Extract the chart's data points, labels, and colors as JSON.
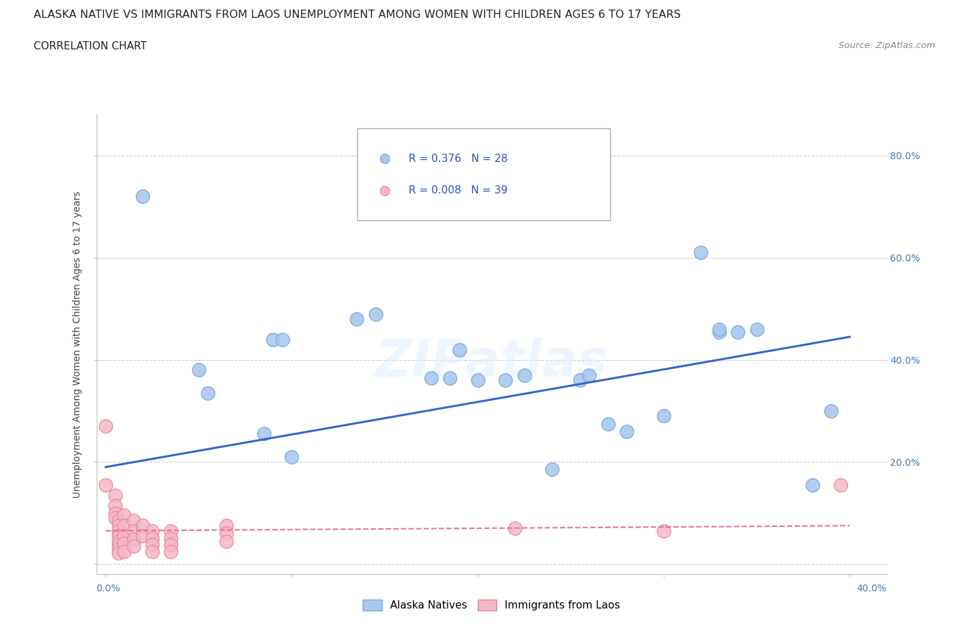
{
  "title": "ALASKA NATIVE VS IMMIGRANTS FROM LAOS UNEMPLOYMENT AMONG WOMEN WITH CHILDREN AGES 6 TO 17 YEARS",
  "subtitle": "CORRELATION CHART",
  "source": "Source: ZipAtlas.com",
  "ylabel": "Unemployment Among Women with Children Ages 6 to 17 years",
  "xlim": [
    0.0,
    0.42
  ],
  "ylim": [
    -0.02,
    0.88
  ],
  "alaska_R": 0.376,
  "alaska_N": 28,
  "laos_R": 0.008,
  "laos_N": 39,
  "watermark": "ZIPatlas",
  "alaska_color": "#aac8ee",
  "alaska_edge": "#7aaad8",
  "laos_color": "#f5b8c8",
  "laos_edge": "#e8849c",
  "alaska_line_color": "#3366cc",
  "laos_line_color": "#e87090",
  "background_color": "#ffffff",
  "alaska_points": [
    [
      0.02,
      0.72
    ],
    [
      0.05,
      0.38
    ],
    [
      0.055,
      0.335
    ],
    [
      0.09,
      0.44
    ],
    [
      0.095,
      0.44
    ],
    [
      0.085,
      0.255
    ],
    [
      0.1,
      0.21
    ],
    [
      0.135,
      0.48
    ],
    [
      0.145,
      0.49
    ],
    [
      0.175,
      0.365
    ],
    [
      0.185,
      0.365
    ],
    [
      0.19,
      0.42
    ],
    [
      0.2,
      0.36
    ],
    [
      0.215,
      0.36
    ],
    [
      0.225,
      0.37
    ],
    [
      0.24,
      0.185
    ],
    [
      0.255,
      0.36
    ],
    [
      0.26,
      0.37
    ],
    [
      0.27,
      0.275
    ],
    [
      0.28,
      0.26
    ],
    [
      0.3,
      0.29
    ],
    [
      0.32,
      0.61
    ],
    [
      0.33,
      0.455
    ],
    [
      0.34,
      0.455
    ],
    [
      0.35,
      0.46
    ],
    [
      0.33,
      0.46
    ],
    [
      0.38,
      0.155
    ],
    [
      0.39,
      0.3
    ]
  ],
  "laos_points": [
    [
      0.0,
      0.27
    ],
    [
      0.0,
      0.155
    ],
    [
      0.005,
      0.135
    ],
    [
      0.005,
      0.115
    ],
    [
      0.005,
      0.1
    ],
    [
      0.005,
      0.09
    ],
    [
      0.007,
      0.085
    ],
    [
      0.007,
      0.075
    ],
    [
      0.007,
      0.065
    ],
    [
      0.007,
      0.055
    ],
    [
      0.007,
      0.045
    ],
    [
      0.007,
      0.038
    ],
    [
      0.007,
      0.03
    ],
    [
      0.007,
      0.022
    ],
    [
      0.01,
      0.095
    ],
    [
      0.01,
      0.075
    ],
    [
      0.01,
      0.055
    ],
    [
      0.01,
      0.04
    ],
    [
      0.01,
      0.025
    ],
    [
      0.015,
      0.085
    ],
    [
      0.015,
      0.065
    ],
    [
      0.015,
      0.048
    ],
    [
      0.015,
      0.035
    ],
    [
      0.02,
      0.075
    ],
    [
      0.02,
      0.055
    ],
    [
      0.025,
      0.065
    ],
    [
      0.025,
      0.05
    ],
    [
      0.025,
      0.038
    ],
    [
      0.025,
      0.025
    ],
    [
      0.035,
      0.065
    ],
    [
      0.035,
      0.05
    ],
    [
      0.035,
      0.038
    ],
    [
      0.035,
      0.025
    ],
    [
      0.065,
      0.075
    ],
    [
      0.065,
      0.06
    ],
    [
      0.065,
      0.045
    ],
    [
      0.22,
      0.07
    ],
    [
      0.3,
      0.065
    ],
    [
      0.395,
      0.155
    ]
  ]
}
